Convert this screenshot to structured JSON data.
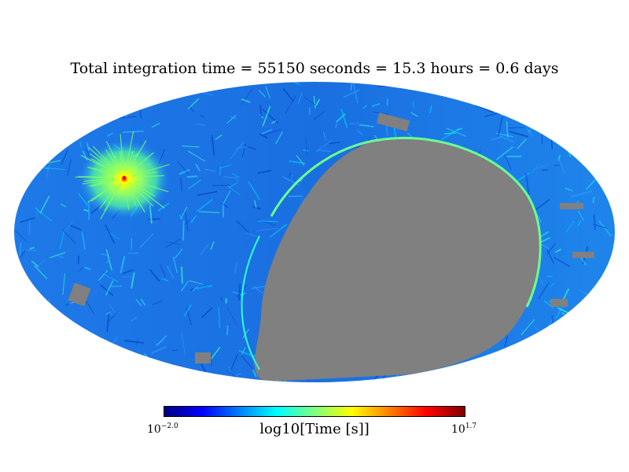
{
  "title": "Total integration time = 55150 seconds = 15.3 hours = 0.6 days",
  "projection": "mollweide",
  "colormap": {
    "name": "jet",
    "stops": [
      "#00007f",
      "#0000ff",
      "#007fff",
      "#00ffff",
      "#7fff7f",
      "#ffff00",
      "#ff7f00",
      "#ff0000",
      "#7f0000"
    ]
  },
  "colorbar": {
    "label": "log10[Time [s]]",
    "min_base": "10",
    "min_exp": "−2.0",
    "max_base": "10",
    "max_exp": "1.7",
    "min_log": -2.0,
    "max_log": 1.7
  },
  "colors": {
    "unobserved": "#808080",
    "typical_coverage": "#1e78e6",
    "hotspot_halo": "#7fff5a",
    "hotspot_core": "#ff0000"
  }
}
